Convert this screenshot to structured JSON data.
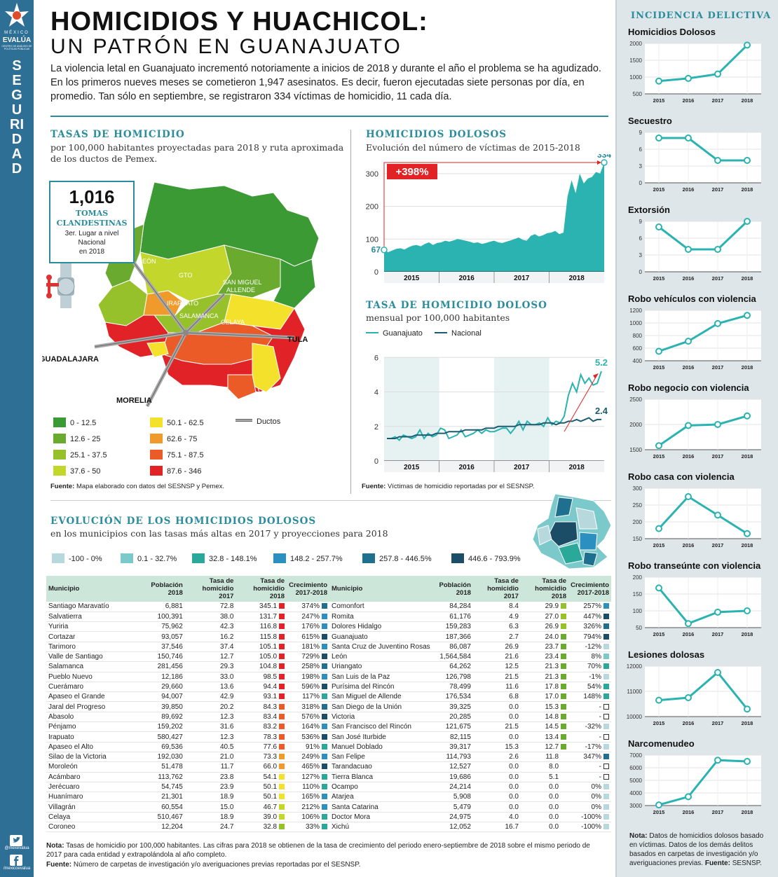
{
  "brand": {
    "line1": "MÉXICO",
    "line2": "EVALÚA",
    "line3": "CENTRO DE ANÁLISIS DE POLÍTICAS PÚBLICAS",
    "section": "SEGURIDAD",
    "twitter": "@mexevalua",
    "facebook": "/mexicoevalua",
    "logo_icon": "star-logo-icon"
  },
  "title": "HOMICIDIOS Y HUACHICOL:",
  "subtitle": "UN PATRÓN EN GUANAJUATO",
  "intro": "La violencia letal en Guanajuato incrementó notoriamente a inicios de 2018 y durante el año el problema se ha agudizado. En los primeros nueves meses se cometieron 1,947 asesinatos. Es decir, fueron ejecutadas siete personas por día, en promedio. Tan sólo en septiembre, se registraron 334 víctimas de homicidio, 11 cada día.",
  "map": {
    "title": "TASAS DE HOMICIDIO",
    "subtitle1": "por 100,000 habitantes proyectadas para 2018 y ruta aproximada",
    "subtitle2": "de los ductos de Pemex.",
    "tomas_value": "1,016",
    "tomas_label1": "TOMAS",
    "tomas_label2": "CLANDESTINAS",
    "tomas_note1": "3er. Lugar a nivel",
    "tomas_note2": "Nacional",
    "tomas_note3": "en 2018",
    "valve_icon": "pipe-valve-icon",
    "labels": {
      "leon": "LEÓN",
      "gto": "GTO",
      "sma1": "SAN MIGUEL",
      "sma2": "ALLENDE",
      "irapuato": "IRAPUATO",
      "salamanca": "SALAMANCA",
      "celaya": "CELAYA",
      "tula": "TULA",
      "guadalajara": "GUADALAJARA",
      "morelia": "MORELIA"
    },
    "legend": [
      {
        "label": "0 - 12.5",
        "color": "#3c9a35"
      },
      {
        "label": "12.6 - 25",
        "color": "#6aaa2e"
      },
      {
        "label": "25.1 - 37.5",
        "color": "#97c12a"
      },
      {
        "label": "37.6 - 50",
        "color": "#c3d62c"
      },
      {
        "label": "50.1 - 62.5",
        "color": "#f3e12b"
      },
      {
        "label": "62.6 - 75",
        "color": "#f09a2b"
      },
      {
        "label": "75.1 - 87.5",
        "color": "#ea5b28"
      },
      {
        "label": "87.6 - 346",
        "color": "#e12226"
      }
    ],
    "ductos_label": "Ductos",
    "source_bold": "Fuente:",
    "source": "Mapa elaborado con datos del SESNSP y Pemex."
  },
  "chart_data": [
    {
      "type": "area",
      "title": "HOMICIDIOS DOLOSOS",
      "subtitle": "Evolución del número de víctimas de 2015-2018",
      "x_ticks": [
        "2015",
        "2016",
        "2017",
        "2018"
      ],
      "ylim": [
        0,
        334
      ],
      "y_ticks": [
        0,
        100,
        200,
        300
      ],
      "values": [
        67,
        60,
        65,
        70,
        72,
        68,
        75,
        80,
        82,
        78,
        85,
        90,
        82,
        88,
        90,
        95,
        92,
        96,
        100,
        98,
        95,
        92,
        88,
        90,
        85,
        88,
        92,
        95,
        90,
        88,
        92,
        96,
        100,
        105,
        98,
        95,
        110,
        115,
        108,
        112,
        118,
        120,
        125,
        115,
        120,
        230,
        280,
        240,
        300,
        270,
        285,
        290,
        305,
        300,
        334
      ],
      "start_label": "67",
      "end_label": "334",
      "change_label": "+398%"
    },
    {
      "type": "line",
      "title": "TASA DE HOMICIDIO DOLOSO",
      "subtitle": "mensual por 100,000 habitantes",
      "x_ticks": [
        "2015",
        "2016",
        "2017",
        "2018"
      ],
      "ylim": [
        0,
        6.5
      ],
      "y_ticks": [
        0,
        2,
        4,
        6
      ],
      "series": [
        {
          "name": "Guanajuato",
          "color": "#2ab3b1",
          "values": [
            1.3,
            1.3,
            1.4,
            1.2,
            1.5,
            1.4,
            1.3,
            1.4,
            1.8,
            1.3,
            1.6,
            1.4,
            1.5,
            1.9,
            1.8,
            1.3,
            1.4,
            1.5,
            1.8,
            1.4,
            1.5,
            1.6,
            1.8,
            1.6,
            1.8,
            1.7,
            1.7,
            1.8,
            1.9,
            1.9,
            1.6,
            1.9,
            2.3,
            1.8,
            2.3,
            2.1,
            2.1,
            2.2,
            2.0,
            2.5,
            2.1,
            2.3,
            2.2,
            2.6,
            3.8,
            4.5,
            4.0,
            5.0,
            4.5,
            4.8,
            4.4,
            4.5,
            5.2
          ]
        },
        {
          "name": "Nacional",
          "color": "#1c5c70",
          "values": [
            1.3,
            1.3,
            1.3,
            1.4,
            1.4,
            1.4,
            1.4,
            1.5,
            1.5,
            1.5,
            1.5,
            1.5,
            1.6,
            1.6,
            1.6,
            1.7,
            1.7,
            1.7,
            1.7,
            1.8,
            1.8,
            1.8,
            1.8,
            1.8,
            1.9,
            1.9,
            1.9,
            2.0,
            2.0,
            2.0,
            2.0,
            2.0,
            2.1,
            2.1,
            2.1,
            2.1,
            2.1,
            2.1,
            2.2,
            2.2,
            2.2,
            2.1,
            2.2,
            2.2,
            2.3,
            2.3,
            2.4,
            2.3,
            2.4,
            2.5,
            2.3,
            2.4,
            2.4
          ]
        }
      ],
      "end_label_gto": "5.2",
      "end_label_nac": "2.4"
    },
    {
      "type": "line",
      "group": "INCIDENCIA DELICTIVA",
      "title": "Homicidios Dolosos",
      "x": [
        "2015",
        "2016",
        "2017",
        "2018"
      ],
      "values": [
        880,
        960,
        1090,
        1950
      ],
      "ylim": [
        500,
        2000
      ],
      "y_ticks": [
        500,
        1000,
        1500,
        2000
      ]
    },
    {
      "type": "line",
      "group": "INCIDENCIA DELICTIVA",
      "title": "Secuestro",
      "x": [
        "2015",
        "2016",
        "2017",
        "2018"
      ],
      "values": [
        8,
        8,
        4,
        4
      ],
      "ylim": [
        0,
        9
      ],
      "y_ticks": [
        0,
        3,
        6,
        9
      ]
    },
    {
      "type": "line",
      "group": "INCIDENCIA DELICTIVA",
      "title": "Extorsión",
      "x": [
        "2015",
        "2016",
        "2017",
        "2018"
      ],
      "values": [
        8,
        4,
        4,
        9
      ],
      "ylim": [
        0,
        9
      ],
      "y_ticks": [
        0,
        3,
        6,
        9
      ]
    },
    {
      "type": "line",
      "group": "INCIDENCIA DELICTIVA",
      "title": "Robo vehículos con violencia",
      "x": [
        "2015",
        "2016",
        "2017",
        "2018"
      ],
      "values": [
        550,
        710,
        990,
        1120
      ],
      "ylim": [
        400,
        1200
      ],
      "y_ticks": [
        400,
        600,
        800,
        1000,
        1200
      ]
    },
    {
      "type": "line",
      "group": "INCIDENCIA DELICTIVA",
      "title": "Robo negocio con violencia",
      "x": [
        "2015",
        "2016",
        "2017",
        "2018"
      ],
      "values": [
        1580,
        1980,
        2000,
        2170
      ],
      "ylim": [
        1500,
        2500
      ],
      "y_ticks": [
        1500,
        2000,
        2500
      ]
    },
    {
      "type": "line",
      "group": "INCIDENCIA DELICTIVA",
      "title": "Robo casa con violencia",
      "x": [
        "2015",
        "2016",
        "2017",
        "2018"
      ],
      "values": [
        180,
        275,
        220,
        165
      ],
      "ylim": [
        150,
        300
      ],
      "y_ticks": [
        150,
        200,
        250,
        300
      ]
    },
    {
      "type": "line",
      "group": "INCIDENCIA DELICTIVA",
      "title": "Robo transeúnte con violencia",
      "x": [
        "2015",
        "2016",
        "2017",
        "2018"
      ],
      "values": [
        168,
        62,
        96,
        100
      ],
      "ylim": [
        50,
        200
      ],
      "y_ticks": [
        50,
        100,
        150,
        200
      ]
    },
    {
      "type": "line",
      "group": "INCIDENCIA DELICTIVA",
      "title": "Lesiones dolosas",
      "x": [
        "2015",
        "2016",
        "2017",
        "2018"
      ],
      "values": [
        10650,
        10750,
        11750,
        10300
      ],
      "ylim": [
        10000,
        12000
      ],
      "y_ticks": [
        10000,
        11000,
        12000
      ]
    },
    {
      "type": "line",
      "group": "INCIDENCIA DELICTIVA",
      "title": "Narcomenudeo",
      "x": [
        "2015",
        "2016",
        "2017",
        "2018"
      ],
      "values": [
        3050,
        3700,
        6600,
        6500
      ],
      "ylim": [
        3000,
        7000
      ],
      "y_ticks": [
        3000,
        4000,
        5000,
        6000,
        7000
      ]
    }
  ],
  "chart_source_bold": "Fuente:",
  "chart_source": "Víctimas de homicidio reportadas por el SESNSP.",
  "incidencia_title": "INCIDENCIA DELICTIVA",
  "incidencia_note_bold": "Nota:",
  "incidencia_note": "Datos de homicidios dolosos basado en víctimas. Datos de los demás delitos basados en carpetas de investigación y/o averiguaciones previas.",
  "incidencia_source_bold": "Fuente:",
  "incidencia_source": "SESNSP.",
  "table_section": {
    "title": "EVOLUCIÓN DE LOS HOMICIDIOS DOLOSOS",
    "subtitle": "en los municipios con las tasas  más altas en 2017 y proyecciones para 2018",
    "legend": [
      {
        "label": "-100 - 0%",
        "color": "#b7d9de"
      },
      {
        "label": "0.1 - 32.7%",
        "color": "#7cc9cc"
      },
      {
        "label": "32.8 - 148.1%",
        "color": "#2aa89a"
      },
      {
        "label": "148.2 - 257.7%",
        "color": "#2b8fbf"
      },
      {
        "label": "257.8 - 446.5%",
        "color": "#1f6f8e"
      },
      {
        "label": "446.6 - 793.9%",
        "color": "#1b4e66"
      }
    ],
    "headers": {
      "municipio": "Municipio",
      "poblacion1": "Población",
      "poblacion2": "2018",
      "tasa17a": "Tasa de",
      "tasa17b": "homicidio 2017",
      "tasa18a": "Tasa de",
      "tasa18b": "homicidio 2018",
      "crec1": "Crecimiento",
      "crec2": "2017-2018"
    },
    "left": [
      [
        "Santiago Maravatío",
        "6,881",
        "72.8",
        "345.1",
        "374%"
      ],
      [
        "Salvatierra",
        "100,391",
        "38.0",
        "131.7",
        "247%"
      ],
      [
        "Yuriria",
        "75,962",
        "42.3",
        "116.8",
        "176%"
      ],
      [
        "Cortazar",
        "93,057",
        "16.2",
        "115.8",
        "615%"
      ],
      [
        "Tarimoro",
        "37,546",
        "37.4",
        "105.1",
        "181%"
      ],
      [
        "Valle de Santiago",
        "150,746",
        "12.7",
        "105.0",
        "729%"
      ],
      [
        "Salamanca",
        "281,456",
        "29.3",
        "104.8",
        "258%"
      ],
      [
        "Pueblo Nuevo",
        "12,186",
        "33.0",
        "98.5",
        "198%"
      ],
      [
        "Cuerámaro",
        "29,660",
        "13.6",
        "94.4",
        "596%"
      ],
      [
        "Apaseo el Grande",
        "94,007",
        "42.9",
        "93.1",
        "117%"
      ],
      [
        "Jaral del Progreso",
        "39,850",
        "20.2",
        "84.3",
        "318%"
      ],
      [
        "Abasolo",
        "89,692",
        "12.3",
        "83.4",
        "576%"
      ],
      [
        "Pénjamo",
        "159,202",
        "31.6",
        "83.2",
        "164%"
      ],
      [
        "Irapuato",
        "580,427",
        "12.3",
        "78.3",
        "536%"
      ],
      [
        "Apaseo el Alto",
        "69,536",
        "40.5",
        "77.6",
        "91%"
      ],
      [
        "Silao de la Victoria",
        "192,030",
        "21.0",
        "73.3",
        "249%"
      ],
      [
        "Moroleón",
        "51,478",
        "11.7",
        "66.0",
        "465%"
      ],
      [
        "Acámbaro",
        "113,762",
        "23.8",
        "54.1",
        "127%"
      ],
      [
        "Jerécuaro",
        "54,745",
        "23.9",
        "50.1",
        "110%"
      ],
      [
        "Huanímaro",
        "21,301",
        "18.9",
        "50.1",
        "165%"
      ],
      [
        "Villagrán",
        "60,554",
        "15.0",
        "46.7",
        "212%"
      ],
      [
        "Celaya",
        "510,467",
        "18.9",
        "39.0",
        "106%"
      ],
      [
        "Coroneo",
        "12,204",
        "24.7",
        "32.8",
        "33%"
      ]
    ],
    "right": [
      [
        "Comonfort",
        "84,284",
        "8.4",
        "29.9",
        "257%"
      ],
      [
        "Romita",
        "61,176",
        "4.9",
        "27.0",
        "447%"
      ],
      [
        "Dolores Hidalgo",
        "159,283",
        "6.3",
        "26.9",
        "326%"
      ],
      [
        "Guanajuato",
        "187,366",
        "2.7",
        "24.0",
        "794%"
      ],
      [
        "Santa Cruz de Juventino Rosas",
        "86,087",
        "26.9",
        "23.7",
        "-12%"
      ],
      [
        "León",
        "1,564,584",
        "21.6",
        "23.4",
        "8%"
      ],
      [
        "Uriangato",
        "64,262",
        "12.5",
        "21.3",
        "70%"
      ],
      [
        "San Luis de la Paz",
        "126,798",
        "21.5",
        "21.3",
        "-1%"
      ],
      [
        "Purísima del Rincón",
        "78,499",
        "11.6",
        "17.8",
        "54%"
      ],
      [
        "San Miguel de Allende",
        "176,534",
        "6.8",
        "17.0",
        "148%"
      ],
      [
        "San Diego de la Unión",
        "39,325",
        "0.0",
        "15.3",
        "-"
      ],
      [
        "Victoria",
        "20,285",
        "0.0",
        "14.8",
        "-"
      ],
      [
        "San Francisco del Rincón",
        "121,675",
        "21.5",
        "14.5",
        "-32%"
      ],
      [
        "San José Iturbide",
        "82,115",
        "0.0",
        "13.4",
        "-"
      ],
      [
        "Manuel Doblado",
        "39,317",
        "15.3",
        "12.7",
        "-17%"
      ],
      [
        "San Felipe",
        "114,793",
        "2.6",
        "11.8",
        "347%"
      ],
      [
        "Tarandacuao",
        "12,527",
        "0.0",
        "8.0",
        "-"
      ],
      [
        "Tierra Blanca",
        "19,686",
        "0.0",
        "5.1",
        "-"
      ],
      [
        "Ocampo",
        "24,214",
        "0.0",
        "0.0",
        "0%"
      ],
      [
        "Atarjea",
        "5,908",
        "0.0",
        "0.0",
        "0%"
      ],
      [
        "Santa Catarina",
        "5,479",
        "0.0",
        "0.0",
        "0%"
      ],
      [
        "Doctor Mora",
        "24,975",
        "4.0",
        "0.0",
        "-100%"
      ],
      [
        "Xichú",
        "12,052",
        "16.7",
        "0.0",
        "-100%"
      ]
    ],
    "note_bold": "Nota:",
    "note": "Tasas de homicidio por 100,000 habitantes. Las cifras para 2018 se obtienen de la tasa de crecimiento del periodo enero-septiembre de 2018 sobre el mismo periodo de 2017 para cada entidad y extrapolándola al año completo.",
    "source_bold": "Fuente:",
    "source": "Número de carpetas de investigación y/o averiguaciones previas reportadas por el SESNSP."
  }
}
